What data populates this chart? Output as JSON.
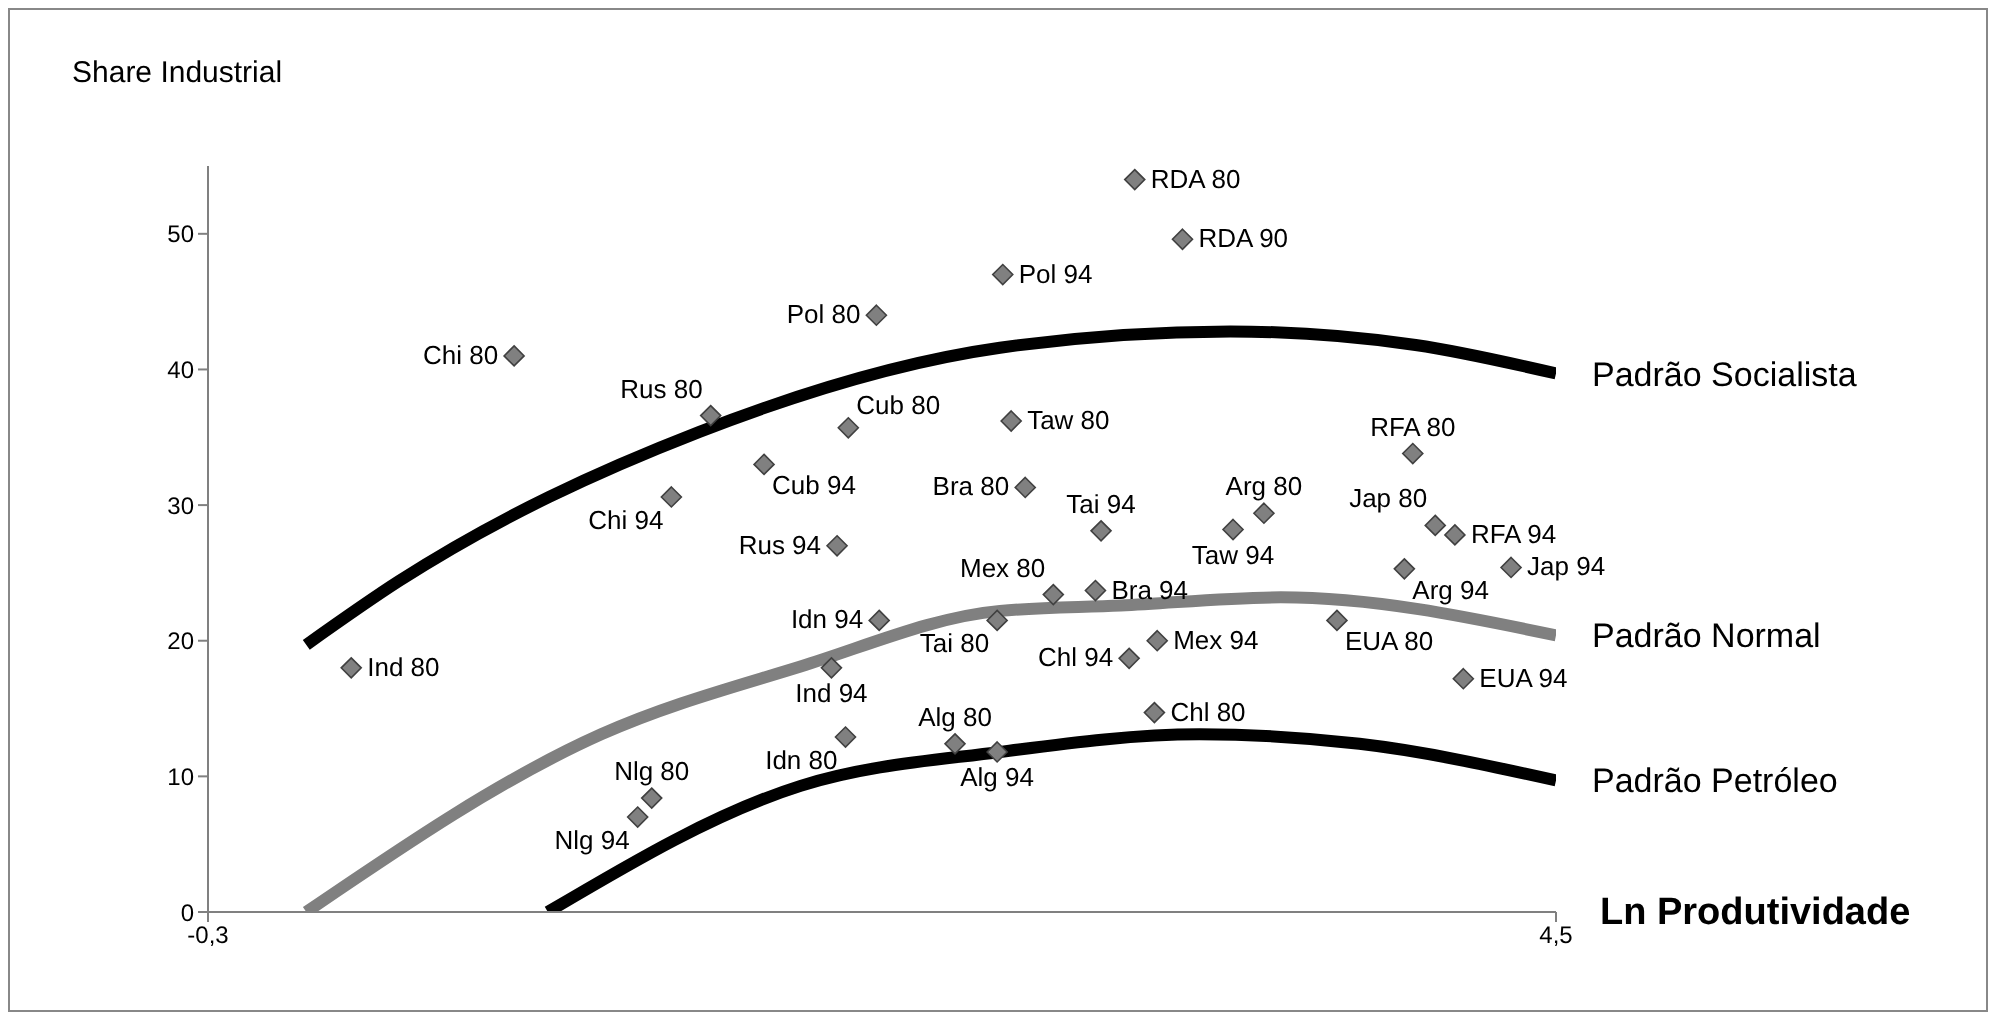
{
  "chart_data": {
    "type": "scatter",
    "title": "Share Industrial",
    "xlabel": "Ln Produtividade",
    "xlim": [
      -0.3,
      4.5
    ],
    "xticks": [
      {
        "value": -0.3,
        "label": "-0,3"
      },
      {
        "value": 4.5,
        "label": "4,5"
      }
    ],
    "ylim": [
      0,
      55
    ],
    "yticks": [
      0,
      10,
      20,
      30,
      40,
      50
    ],
    "series": [
      {
        "color": "#808080",
        "marker": "diamond",
        "x": [
          0.79,
          1.49,
          1.98,
          1.68,
          1.35,
          1.94,
          2.08,
          2.53,
          3.0,
          3.17,
          2.56,
          2.61,
          2.88,
          3.46,
          3.35,
          3.99,
          4.07,
          4.14,
          4.34,
          3.96,
          0.21,
          2.09,
          1.92,
          1.97,
          1.28,
          1.23,
          2.36,
          2.51,
          2.51,
          2.71,
          2.86,
          2.98,
          3.08,
          3.72,
          4.17,
          3.07
        ],
        "values": [
          41,
          36.6,
          35.7,
          33,
          30.6,
          27,
          44,
          47,
          54,
          49.6,
          36.2,
          31.3,
          28.1,
          29.4,
          28.2,
          33.8,
          28.5,
          27.8,
          25.4,
          25.3,
          18,
          21.5,
          18,
          12.9,
          8.4,
          7,
          12.4,
          11.8,
          21.5,
          23.4,
          23.7,
          18.7,
          20,
          21.5,
          17.2,
          14.7
        ]
      },
      {
        "type": "line",
        "name": "Padrão Socialista",
        "color": "#000000",
        "marker": "none",
        "line_style": "solid",
        "x": [
          0.05,
          0.38,
          1.45,
          2.52,
          3.34,
          4.0,
          4.5
        ],
        "values": [
          19.7,
          24.4,
          35.4,
          41.6,
          42.8,
          41.8,
          39.7
        ]
      },
      {
        "type": "line",
        "name": "Padrão Normal",
        "color": "#808080",
        "marker": "none",
        "line_style": "solid",
        "x": [
          0.05,
          1.1,
          1.81,
          2.52,
          2.95,
          3.52,
          4.5
        ],
        "values": [
          0,
          13.1,
          18.1,
          22.2,
          22.6,
          23.2,
          20.4
        ]
      },
      {
        "type": "line",
        "name": "Padrão Petróleo",
        "color": "#000000",
        "marker": "none",
        "line_style": "solid",
        "x": [
          0.91,
          1.81,
          2.52,
          3.23,
          3.8,
          4.5
        ],
        "values": [
          0,
          9.3,
          11.8,
          13.1,
          12.4,
          9.7
        ]
      }
    ],
    "annotations": [
      {
        "text": "Chi 80",
        "x": 0.79,
        "y": 41
      },
      {
        "text": "Rus 80",
        "x": 1.49,
        "y": 36.6
      },
      {
        "text": "Cub 80",
        "x": 1.98,
        "y": 35.7
      },
      {
        "text": "Cub 94",
        "x": 1.68,
        "y": 33
      },
      {
        "text": "Chi 94",
        "x": 1.35,
        "y": 30.6
      },
      {
        "text": "Rus 94",
        "x": 1.94,
        "y": 27
      },
      {
        "text": "Pol 80",
        "x": 2.08,
        "y": 44
      },
      {
        "text": "Pol 94",
        "x": 2.53,
        "y": 47
      },
      {
        "text": "RDA 80",
        "x": 3.0,
        "y": 54
      },
      {
        "text": "RDA 90",
        "x": 3.17,
        "y": 49.6
      },
      {
        "text": "Taw 80",
        "x": 2.56,
        "y": 36.2
      },
      {
        "text": "Bra 80",
        "x": 2.61,
        "y": 31.3
      },
      {
        "text": "Tai 94",
        "x": 2.88,
        "y": 28.1
      },
      {
        "text": "Arg 80",
        "x": 3.46,
        "y": 29.4
      },
      {
        "text": "Taw 94",
        "x": 3.35,
        "y": 28.2
      },
      {
        "text": "RFA 80",
        "x": 3.99,
        "y": 33.8
      },
      {
        "text": "Jap 80",
        "x": 4.07,
        "y": 28.5
      },
      {
        "text": "RFA 94",
        "x": 4.14,
        "y": 27.8
      },
      {
        "text": "Jap 94",
        "x": 4.34,
        "y": 25.4
      },
      {
        "text": "Arg 94",
        "x": 3.96,
        "y": 25.3
      },
      {
        "text": "Ind 80",
        "x": 0.21,
        "y": 18
      },
      {
        "text": "Idn 94",
        "x": 2.09,
        "y": 21.5
      },
      {
        "text": "Ind 94",
        "x": 1.92,
        "y": 18
      },
      {
        "text": "Idn 80",
        "x": 1.97,
        "y": 12.9
      },
      {
        "text": "Nlg 80",
        "x": 1.28,
        "y": 8.4
      },
      {
        "text": "Nlg 94",
        "x": 1.23,
        "y": 7
      },
      {
        "text": "Alg 80",
        "x": 2.36,
        "y": 12.4
      },
      {
        "text": "Alg 94",
        "x": 2.51,
        "y": 11.8
      },
      {
        "text": "Tai 80",
        "x": 2.51,
        "y": 21.5
      },
      {
        "text": "Mex 80",
        "x": 2.71,
        "y": 23.4
      },
      {
        "text": "Bra 94",
        "x": 2.86,
        "y": 23.7
      },
      {
        "text": "Chl 94",
        "x": 2.98,
        "y": 18.7
      },
      {
        "text": "Mex 94",
        "x": 3.08,
        "y": 20
      },
      {
        "text": "EUA 80",
        "x": 3.72,
        "y": 21.5
      },
      {
        "text": "EUA 94",
        "x": 4.17,
        "y": 17.2
      },
      {
        "text": "Chl 80",
        "x": 3.07,
        "y": 14.7
      }
    ]
  }
}
